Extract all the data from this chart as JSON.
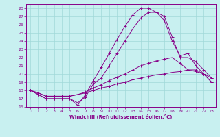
{
  "xlabel": "Windchill (Refroidissement éolien,°C)",
  "ylabel": "",
  "xlim": [
    -0.5,
    23.5
  ],
  "ylim": [
    16,
    28.5
  ],
  "xticks": [
    0,
    1,
    2,
    3,
    4,
    5,
    6,
    7,
    8,
    9,
    10,
    11,
    12,
    13,
    14,
    15,
    16,
    17,
    18,
    19,
    20,
    21,
    22,
    23
  ],
  "yticks": [
    16,
    17,
    18,
    19,
    20,
    21,
    22,
    23,
    24,
    25,
    26,
    27,
    28
  ],
  "background_color": "#c8f0f0",
  "grid_color": "#a0d8d8",
  "line_color": "#880088",
  "lines": [
    {
      "x": [
        0,
        1,
        2,
        3,
        4,
        5,
        6,
        7,
        8,
        9,
        10,
        11,
        12,
        13,
        14,
        15,
        16,
        17,
        18,
        19,
        20,
        21,
        22,
        23
      ],
      "y": [
        18,
        17.5,
        17.0,
        17.0,
        17.0,
        17.0,
        16.2,
        17.5,
        19.2,
        20.8,
        22.5,
        24.2,
        25.8,
        27.2,
        28.0,
        28.0,
        27.5,
        27.0,
        24.5,
        22.0,
        22.0,
        21.5,
        20.5,
        19.5
      ]
    },
    {
      "x": [
        0,
        1,
        2,
        3,
        4,
        5,
        6,
        7,
        8,
        9,
        10,
        11,
        12,
        13,
        14,
        15,
        16,
        17,
        18,
        19,
        20,
        21,
        22,
        23
      ],
      "y": [
        18,
        17.5,
        17.0,
        17.0,
        17.0,
        17.0,
        16.5,
        17.2,
        18.8,
        19.5,
        21.0,
        22.5,
        24.0,
        25.5,
        26.8,
        27.5,
        27.5,
        26.5,
        24.0,
        22.2,
        22.5,
        21.0,
        20.0,
        19.0
      ]
    },
    {
      "x": [
        0,
        1,
        2,
        3,
        4,
        5,
        6,
        7,
        8,
        9,
        10,
        11,
        12,
        13,
        14,
        15,
        16,
        17,
        18,
        19,
        20,
        21,
        22,
        23
      ],
      "y": [
        18,
        17.7,
        17.3,
        17.3,
        17.3,
        17.3,
        17.5,
        17.8,
        18.3,
        18.7,
        19.2,
        19.6,
        20.0,
        20.5,
        21.0,
        21.3,
        21.6,
        21.8,
        22.0,
        21.3,
        20.5,
        20.5,
        20.0,
        19.5
      ]
    },
    {
      "x": [
        0,
        1,
        2,
        3,
        4,
        5,
        6,
        7,
        8,
        9,
        10,
        11,
        12,
        13,
        14,
        15,
        16,
        17,
        18,
        19,
        20,
        21,
        22,
        23
      ],
      "y": [
        18,
        17.7,
        17.3,
        17.3,
        17.3,
        17.3,
        17.5,
        17.7,
        18.0,
        18.3,
        18.5,
        18.8,
        19.0,
        19.3,
        19.5,
        19.7,
        19.9,
        20.0,
        20.2,
        20.3,
        20.5,
        20.3,
        20.0,
        19.0
      ]
    }
  ]
}
